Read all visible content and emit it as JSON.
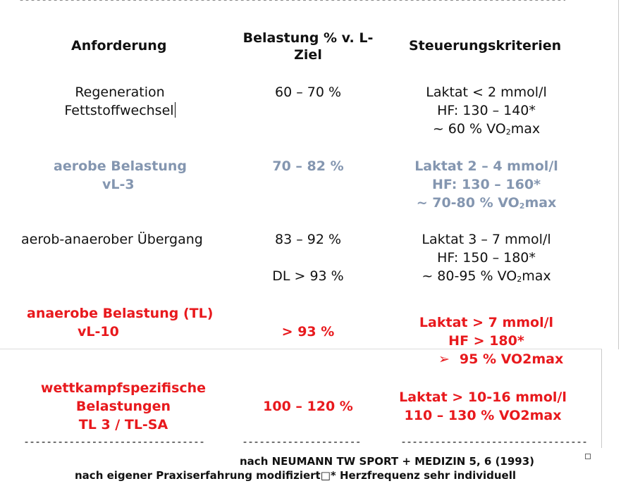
{
  "top_rule": "-----------------------------------------------------------------------------------------------------------",
  "headers": {
    "col1": "Anforderung",
    "col2_line1": "Belastung % v. L-",
    "col2_line2": "Ziel",
    "col3": "Steuerungskriterien"
  },
  "rows": [
    {
      "col1": [
        "Regeneration",
        "Fettstoffwechsel"
      ],
      "col2": [
        "60 – 70 %"
      ],
      "col3": [
        "Laktat < 2 mmol/l",
        "HF: 130 – 140*",
        "~ 60 % VO",
        "2",
        "max"
      ]
    },
    {
      "col1": [
        "aerobe Belastung",
        "vL-3"
      ],
      "col2": [
        "70 – 82 %"
      ],
      "col3": [
        "Laktat 2 – 4 mmol/l",
        "HF: 130 – 160*",
        "~ 70-80 % VO",
        "2",
        "max"
      ]
    },
    {
      "col1": [
        "aerob-anaerober Übergang"
      ],
      "col2": [
        "83 – 92 %",
        "DL > 93 %"
      ],
      "col3": [
        "Laktat 3 – 7 mmol/l",
        "HF: 150 – 180*",
        "~ 80-95 % VO",
        "2",
        "max"
      ]
    },
    {
      "col1": [
        "anaerobe Belastung (TL)",
        "vL-10"
      ],
      "col2": [
        "> 93 %"
      ],
      "col3": [
        "Laktat > 7 mmol/l",
        "HF > 180*",
        "➢",
        "95 % VO2max"
      ]
    },
    {
      "col1": [
        "wettkampfspezifische",
        "Belastungen",
        "TL 3 / TL-SA"
      ],
      "col2": [
        "100 – 120 %"
      ],
      "col3": [
        "Laktat > 10-16 mmol/l",
        "110 – 130 % VO2max"
      ]
    }
  ],
  "bottom_rules": [
    "--------------------------------",
    "---------------------",
    "---------------------------------"
  ],
  "footer": {
    "line1": "nach NEUMANN TW SPORT + MEDIZIN 5, 6 (1993)",
    "line2": "nach eigener Praxiserfahrung modifiziert□* Herzfrequenz sehr individuell"
  },
  "colors": {
    "text": "#111111",
    "gray": "#8496b0",
    "red": "#e8191d"
  }
}
